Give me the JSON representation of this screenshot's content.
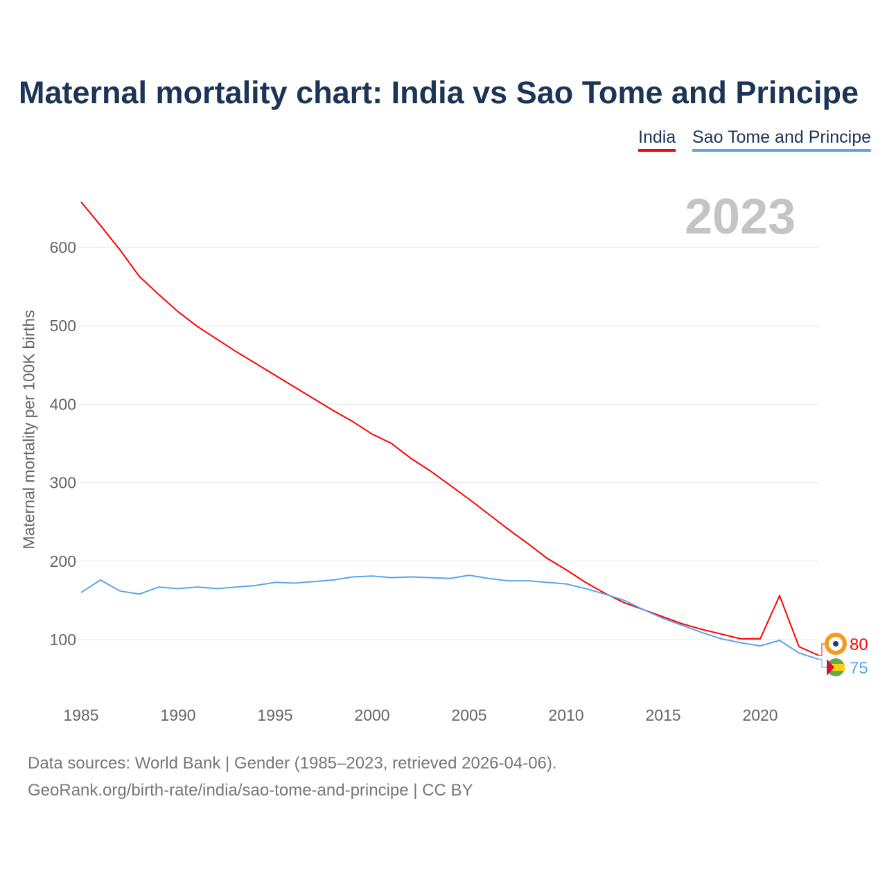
{
  "title": "Maternal mortality chart: India vs Sao Tome and Principe",
  "year_label": "2023",
  "source_line1": "Data sources: World Bank | Gender (1985–2023, retrieved 2026-04-06).",
  "source_line2": "GeoRank.org/birth-rate/india/sao-tome-and-principe | CC BY",
  "chart_data": {
    "type": "line",
    "title": "Maternal mortality chart: India vs Sao Tome and Principe",
    "xlabel": "",
    "ylabel": "Maternal mortality per 100K births",
    "xlim": [
      1985,
      2023
    ],
    "ylim": [
      40,
      670
    ],
    "xticks": [
      1985,
      1990,
      1995,
      2000,
      2005,
      2010,
      2015,
      2020
    ],
    "yticks": [
      100,
      200,
      300,
      400,
      500,
      600
    ],
    "grid": true,
    "legend": "top-right",
    "x": [
      1985,
      1986,
      1987,
      1988,
      1989,
      1990,
      1991,
      1992,
      1993,
      1994,
      1995,
      1996,
      1997,
      1998,
      1999,
      2000,
      2001,
      2002,
      2003,
      2004,
      2005,
      2006,
      2007,
      2008,
      2009,
      2010,
      2011,
      2012,
      2013,
      2014,
      2015,
      2016,
      2017,
      2018,
      2019,
      2020,
      2021,
      2022,
      2023
    ],
    "series": [
      {
        "name": "India",
        "color": "#ff0000",
        "end_label": "80",
        "values": [
          658,
          628,
          597,
          563,
          540,
          518,
          499,
          483,
          467,
          452,
          437,
          422,
          407,
          392,
          378,
          362,
          350,
          331,
          315,
          297,
          279,
          260,
          241,
          223,
          204,
          189,
          173,
          159,
          147,
          138,
          129,
          120,
          113,
          107,
          101,
          101,
          156,
          91,
          80
        ]
      },
      {
        "name": "Sao Tome and Principe",
        "color": "#5aa5ec",
        "end_label": "75",
        "values": [
          160,
          176,
          162,
          158,
          167,
          165,
          167,
          165,
          167,
          169,
          173,
          172,
          174,
          176,
          180,
          181,
          179,
          180,
          179,
          178,
          182,
          178,
          175,
          175,
          173,
          171,
          165,
          158,
          150,
          138,
          127,
          118,
          109,
          101,
          96,
          92,
          99,
          83,
          75
        ]
      }
    ]
  }
}
